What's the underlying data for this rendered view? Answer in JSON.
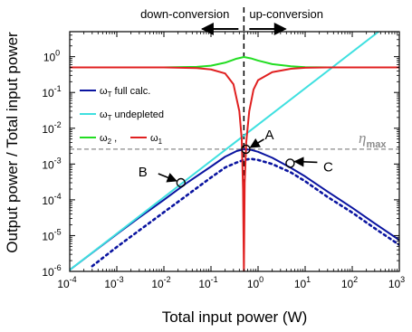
{
  "chart_data": {
    "type": "line",
    "xlabel": "Total input power (W)",
    "ylabel": "Output power / Total input power",
    "xscale": "log",
    "yscale": "log",
    "xlim": [
      0.0001,
      1000
    ],
    "ylim": [
      1e-06,
      5
    ],
    "x_ticks": [
      {
        "value": 0.0001,
        "base": "10",
        "exp": "-4"
      },
      {
        "value": 0.001,
        "base": "10",
        "exp": "-3"
      },
      {
        "value": 0.01,
        "base": "10",
        "exp": "-2"
      },
      {
        "value": 0.1,
        "base": "10",
        "exp": "-1"
      },
      {
        "value": 1,
        "base": "10",
        "exp": "0"
      },
      {
        "value": 10,
        "base": "10",
        "exp": "1"
      },
      {
        "value": 100,
        "base": "10",
        "exp": "2"
      },
      {
        "value": 1000,
        "base": "10",
        "exp": "3"
      }
    ],
    "y_ticks": [
      {
        "value": 1e-06,
        "base": "10",
        "exp": "-6"
      },
      {
        "value": 1e-05,
        "base": "10",
        "exp": "-5"
      },
      {
        "value": 0.0001,
        "base": "10",
        "exp": "-4"
      },
      {
        "value": 0.001,
        "base": "10",
        "exp": "-3"
      },
      {
        "value": 0.01,
        "base": "10",
        "exp": "-2"
      },
      {
        "value": 0.1,
        "base": "10",
        "exp": "-1"
      },
      {
        "value": 1,
        "base": "10",
        "exp": "0"
      }
    ],
    "top_labels": {
      "left": "down-conversion",
      "right": "up-conversion"
    },
    "threshold_x": 0.5,
    "eta_max": {
      "value": 0.0026,
      "symbol": "η",
      "subscript": "max"
    },
    "legend": {
      "position": "center-left",
      "entries": [
        {
          "symbol": "ω",
          "sub": "T",
          "text": " full calc.",
          "color": "#0a14a0"
        },
        {
          "symbol": "ω",
          "sub": "T",
          "text": " undepleted",
          "color": "#3fe0e0"
        },
        {
          "symbol": "ω",
          "sub": "2",
          "text": "  ,",
          "color": "#22dd22",
          "symbol2": "ω",
          "sub2": "1",
          "color2": "#e02020"
        }
      ]
    },
    "series": [
      {
        "key": "full",
        "color": "#0a14a0",
        "style": "solid",
        "x": [
          0.0001,
          0.0003,
          0.001,
          0.003,
          0.01,
          0.03,
          0.1,
          0.2,
          0.35,
          0.5,
          0.7,
          1,
          2,
          5,
          10,
          30,
          100,
          300,
          1000
        ],
        "y": [
          1.1e-06,
          3.3e-06,
          1.1e-05,
          3.2e-05,
          0.0001,
          0.00029,
          0.00085,
          0.0016,
          0.0023,
          0.0026,
          0.0025,
          0.0022,
          0.0015,
          0.00078,
          0.00045,
          0.00017,
          6e-05,
          2.2e-05,
          7.5e-06
        ]
      },
      {
        "key": "dotted",
        "color": "#0a14a0",
        "style": "dotted",
        "x": [
          0.0003,
          0.001,
          0.003,
          0.01,
          0.03,
          0.1,
          0.2,
          0.35,
          0.5,
          0.7,
          1,
          2,
          5,
          10,
          30,
          100,
          300,
          1000
        ],
        "y": [
          1.4e-06,
          4.8e-06,
          1.4e-05,
          4.5e-05,
          0.00013,
          0.00042,
          0.0008,
          0.0011,
          0.0013,
          0.0014,
          0.0013,
          0.001,
          0.00058,
          0.00033,
          0.00012,
          4.4e-05,
          1.6e-05,
          5.5e-06
        ]
      },
      {
        "key": "undepleted",
        "color": "#3fe0e0",
        "style": "solid",
        "x": [
          0.0001,
          1000
        ],
        "y": [
          1.1e-06,
          14
        ]
      },
      {
        "key": "w2",
        "color": "#22dd22",
        "style": "solid",
        "x": [
          0.0001,
          0.01,
          0.05,
          0.1,
          0.2,
          0.35,
          0.5,
          0.7,
          1,
          2,
          5,
          10,
          30,
          1000
        ],
        "y": [
          0.5,
          0.5,
          0.52,
          0.56,
          0.68,
          0.88,
          0.98,
          0.9,
          0.78,
          0.62,
          0.54,
          0.51,
          0.5,
          0.5
        ]
      },
      {
        "key": "w1",
        "color": "#e02020",
        "style": "solid",
        "x": [
          0.0001,
          0.01,
          0.05,
          0.1,
          0.2,
          0.3,
          0.4,
          0.45,
          0.48,
          0.5,
          0.52,
          0.56,
          0.65,
          0.8,
          1,
          2,
          5,
          10,
          30,
          1000
        ],
        "y": [
          0.5,
          0.5,
          0.48,
          0.44,
          0.34,
          0.17,
          0.03,
          0.005,
          0.0002,
          1e-06,
          0.0003,
          0.004,
          0.03,
          0.12,
          0.22,
          0.37,
          0.46,
          0.49,
          0.5,
          0.5
        ]
      }
    ],
    "points": [
      {
        "label": "A",
        "x": 0.55,
        "y": 0.0026,
        "label_dx": 26,
        "label_dy": -16,
        "arrow_from_dx": 20,
        "arrow_from_dy": -11
      },
      {
        "label": "B",
        "x": 0.023,
        "y": 0.0003,
        "label_dx": -42,
        "label_dy": -12,
        "arrow_from_dx": -25,
        "arrow_from_dy": -10
      },
      {
        "label": "C",
        "x": 4.8,
        "y": 0.00105,
        "label_dx": 42,
        "label_dy": 4,
        "arrow_from_dx": 30,
        "arrow_from_dy": -1
      }
    ]
  }
}
